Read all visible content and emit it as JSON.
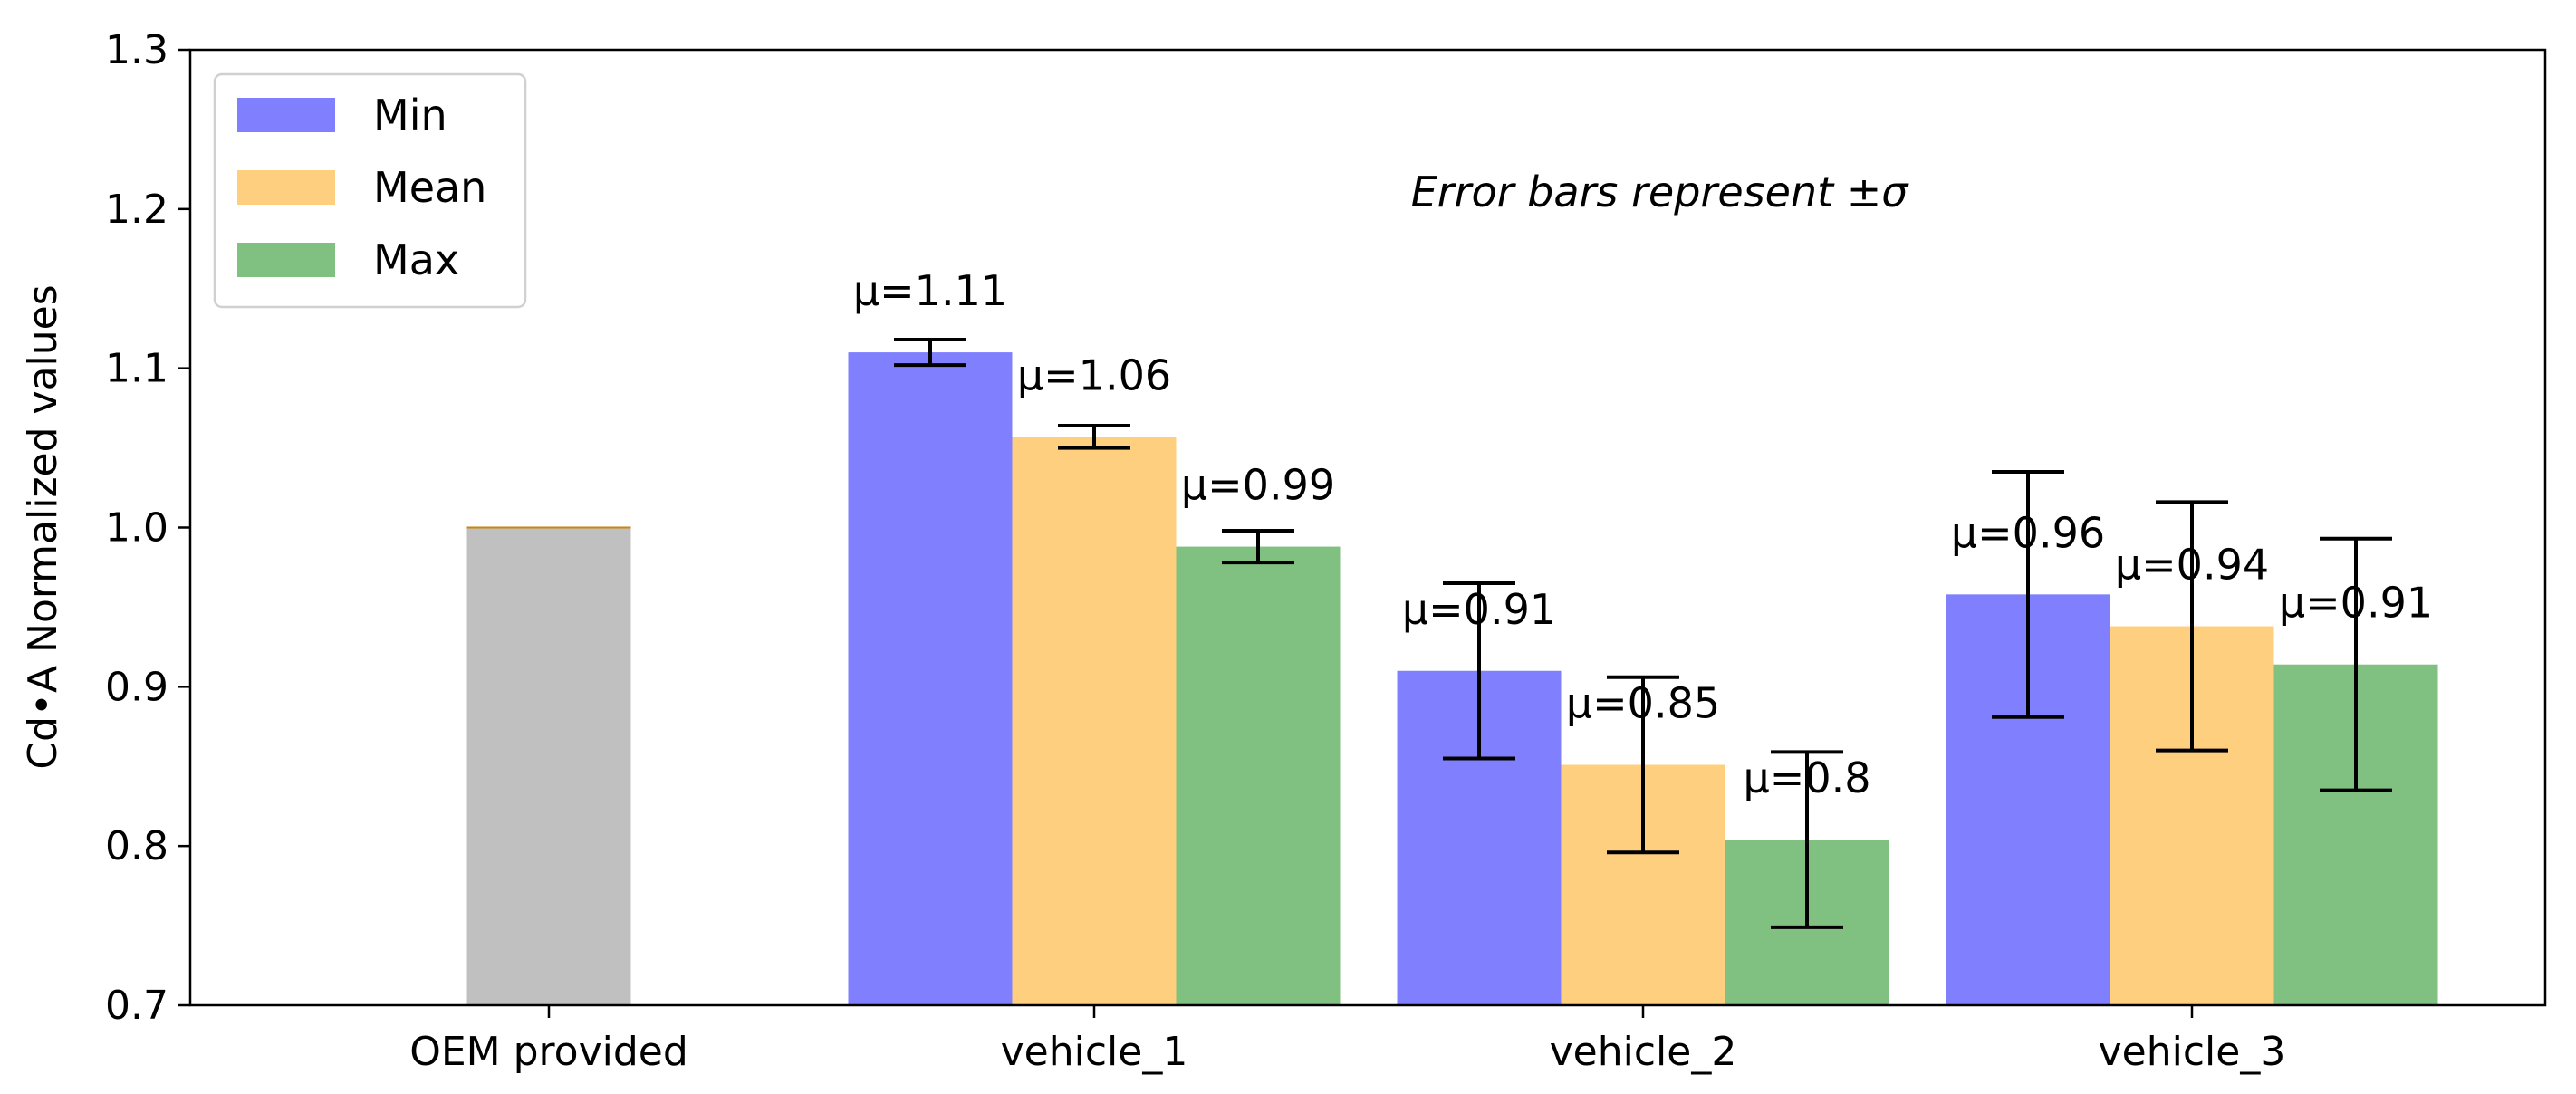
{
  "chart_data": {
    "type": "bar",
    "categories": [
      "OEM provided",
      "vehicle_1",
      "vehicle_2",
      "vehicle_3"
    ],
    "ylabel": "Cd•A Normalized values",
    "ylim": [
      0.7,
      1.3
    ],
    "yticks": [
      "0.7",
      "0.8",
      "0.9",
      "1.0",
      "1.1",
      "1.2",
      "1.3"
    ],
    "grid": false,
    "legend": {
      "placement": "top-left"
    },
    "annotation": "Error bars represent ±σ",
    "reference": {
      "category": "OEM provided",
      "value": 1.0,
      "color": "#c0c0c0"
    },
    "series": [
      {
        "name": "Min",
        "color": "#8080ff",
        "values": [
          null,
          1.11,
          0.91,
          0.958
        ],
        "errors": [
          null,
          0.008,
          0.055,
          0.077
        ],
        "labels": [
          null,
          "μ=1.11",
          "μ=0.91",
          "μ=0.96"
        ]
      },
      {
        "name": "Mean",
        "color": "#ffcf80",
        "values": [
          null,
          1.057,
          0.851,
          0.938
        ],
        "errors": [
          null,
          0.007,
          0.055,
          0.078
        ],
        "labels": [
          null,
          "μ=1.06",
          "μ=0.85",
          "μ=0.94"
        ]
      },
      {
        "name": "Max",
        "color": "#80c080",
        "values": [
          null,
          0.988,
          0.804,
          0.914
        ],
        "errors": [
          null,
          0.01,
          0.055,
          0.079
        ],
        "labels": [
          null,
          "μ=0.99",
          "μ=0.8",
          "μ=0.91"
        ]
      }
    ]
  }
}
